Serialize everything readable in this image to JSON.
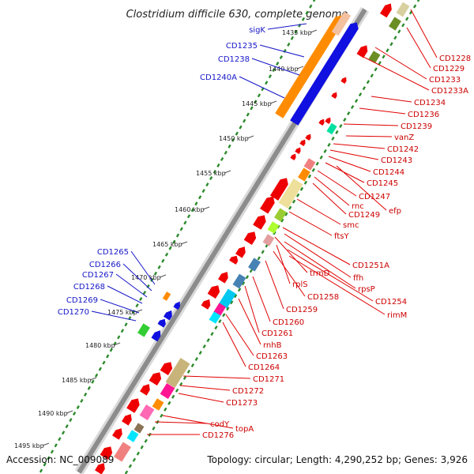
{
  "title": "Clostridium difficile 630, complete genome",
  "footer": {
    "accession": "Accession: NC_009089",
    "summary": "Topology: circular; Length: 4,290,252 bp; Genes: 3,926"
  },
  "colors": {
    "backbone": "#8c8c8c",
    "forward_gene": "#1010e0",
    "reverse_gene": "#ee0000",
    "label_forward": "#1515c8",
    "label_reverse": "#cc0000",
    "cds_tick": "#2a8a2a"
  },
  "scale_labels": [
    "1435 kbp",
    "1440 kbp",
    "1445 kbp",
    "1450 kbp",
    "1455 kbp",
    "1460 kbp",
    "1465 kbp",
    "1470 kbp",
    "1475 kbp",
    "1480 kbp",
    "1485 kbp",
    "1490 kbp",
    "1495 kbp"
  ],
  "forward_labels": [
    "sigK",
    "CD1235",
    "CD1238",
    "CD1240A",
    "CD1265",
    "CD1266",
    "CD1267",
    "CD1268",
    "CD1269",
    "CD1270"
  ],
  "reverse_labels": [
    "CD1228",
    "CD1229",
    "CD1233",
    "CD1233A",
    "CD1234",
    "CD1236",
    "CD1239",
    "vanZ",
    "CD1242",
    "CD1243",
    "CD1244",
    "CD1245",
    "CD1247",
    "efp",
    "rnc",
    "CD1249",
    "smc",
    "ftsY",
    "CD1251A",
    "ffh",
    "trmD",
    "rpsP",
    "rplS",
    "CD1258",
    "CD1254",
    "rimM",
    "CD1259",
    "CD1260",
    "CD1261",
    "rnhB",
    "CD1263",
    "CD1264",
    "CD1271",
    "CD1272",
    "CD1273",
    "topA",
    "codY",
    "CD1276"
  ]
}
